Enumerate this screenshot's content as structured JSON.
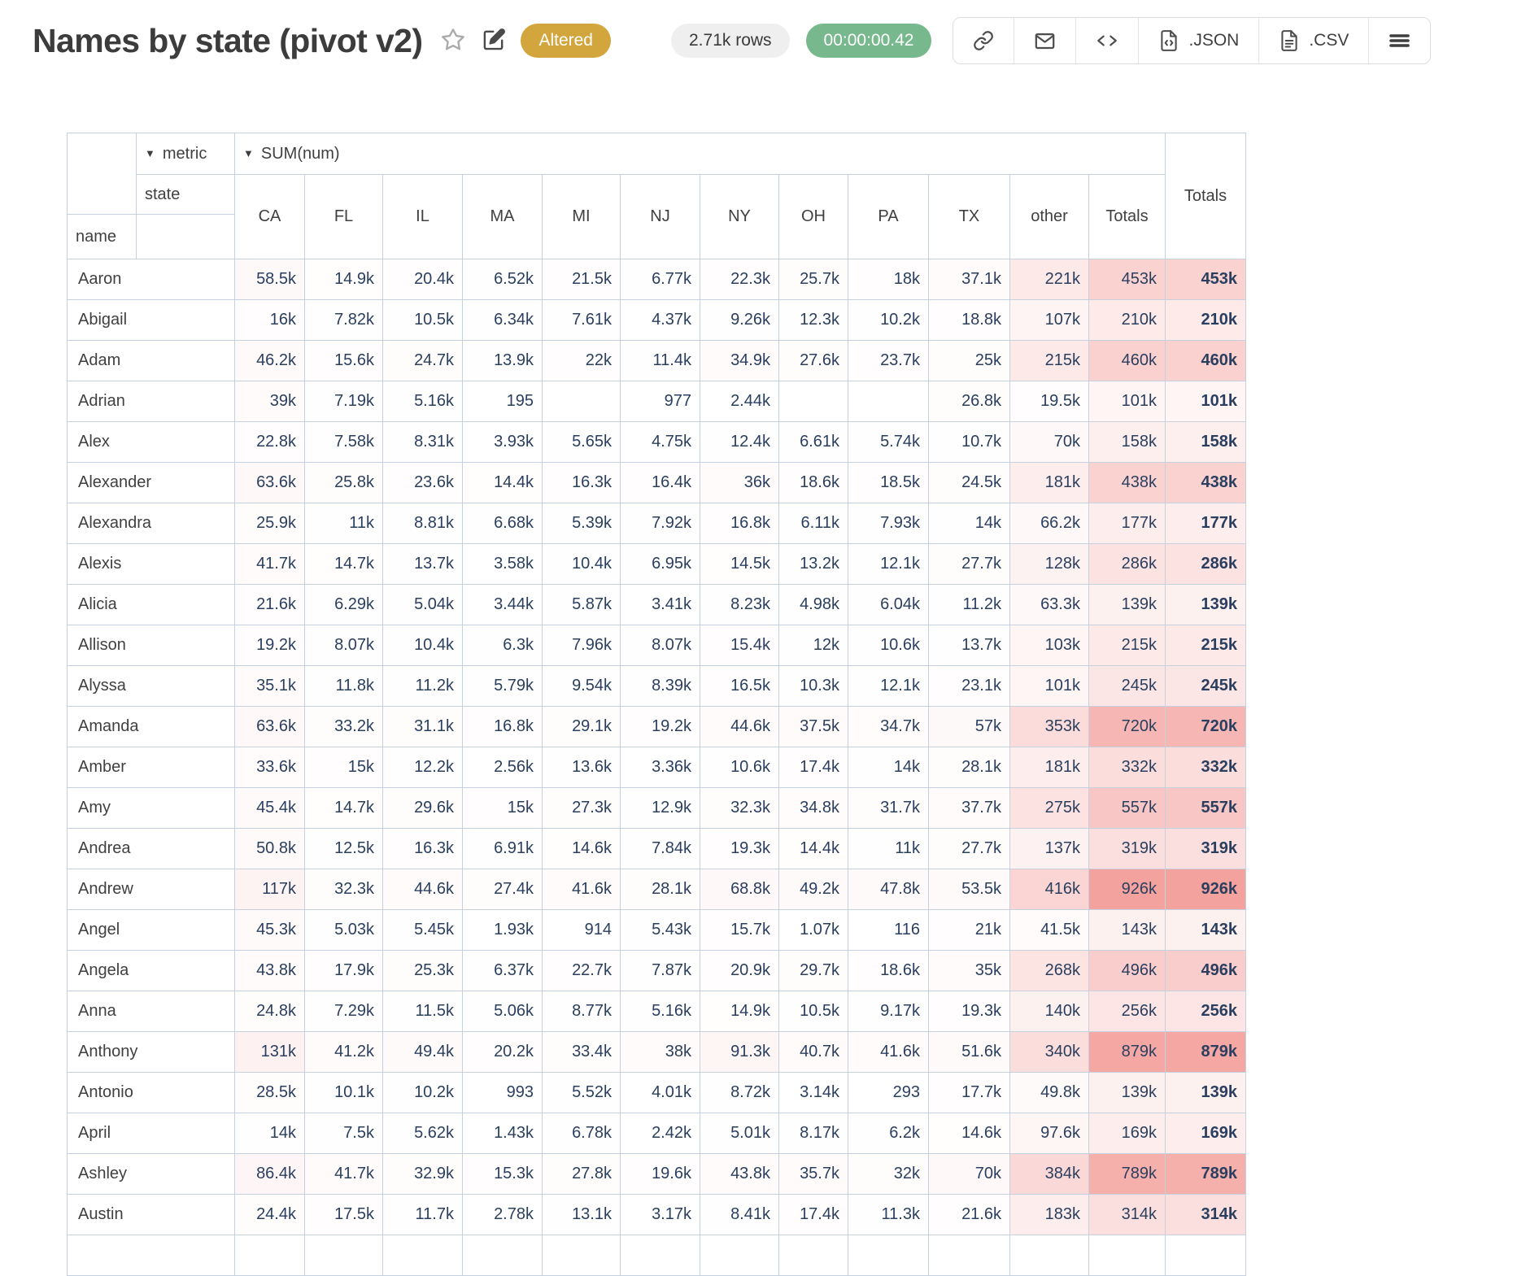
{
  "header": {
    "title": "Names by state (pivot v2)",
    "status_badge": "Altered",
    "rows_badge": "2.71k rows",
    "timer_badge": "00:00:00.42",
    "icons": [
      "star-icon",
      "edit-icon",
      "link-icon",
      "mail-icon",
      "code-icon",
      "file-json-icon",
      "file-csv-icon",
      "menu-icon"
    ],
    "buttons": [
      {
        "icon": "link-icon",
        "label": ""
      },
      {
        "icon": "mail-icon",
        "label": ""
      },
      {
        "icon": "code-icon",
        "label": ""
      },
      {
        "icon": "file-json-icon",
        "label": ".JSON"
      },
      {
        "icon": "file-csv-icon",
        "label": ".CSV"
      },
      {
        "icon": "menu-icon",
        "label": ""
      }
    ]
  },
  "pivot": {
    "metric_label": "metric",
    "metric_value": "SUM(num)",
    "col_axis_label": "state",
    "row_axis_label": "name",
    "totals_label": "Totals",
    "heat_max_value": 926000,
    "heat_color_max": "#f4a29e",
    "text_color": "#2a3f5f",
    "border_color": "#c6d1e0",
    "columns": [
      "CA",
      "FL",
      "IL",
      "MA",
      "MI",
      "NJ",
      "NY",
      "OH",
      "PA",
      "TX",
      "other",
      "Totals"
    ],
    "rows": [
      {
        "name": "Aaron",
        "values": [
          "58.5k",
          "14.9k",
          "20.4k",
          "6.52k",
          "21.5k",
          "6.77k",
          "22.3k",
          "25.7k",
          "18k",
          "37.1k",
          "221k",
          "453k"
        ],
        "total": "453k"
      },
      {
        "name": "Abigail",
        "values": [
          "16k",
          "7.82k",
          "10.5k",
          "6.34k",
          "7.61k",
          "4.37k",
          "9.26k",
          "12.3k",
          "10.2k",
          "18.8k",
          "107k",
          "210k"
        ],
        "total": "210k"
      },
      {
        "name": "Adam",
        "values": [
          "46.2k",
          "15.6k",
          "24.7k",
          "13.9k",
          "22k",
          "11.4k",
          "34.9k",
          "27.6k",
          "23.7k",
          "25k",
          "215k",
          "460k"
        ],
        "total": "460k"
      },
      {
        "name": "Adrian",
        "values": [
          "39k",
          "7.19k",
          "5.16k",
          "195",
          "",
          "977",
          "2.44k",
          "",
          "",
          "26.8k",
          "19.5k",
          "101k"
        ],
        "total": "101k"
      },
      {
        "name": "Alex",
        "values": [
          "22.8k",
          "7.58k",
          "8.31k",
          "3.93k",
          "5.65k",
          "4.75k",
          "12.4k",
          "6.61k",
          "5.74k",
          "10.7k",
          "70k",
          "158k"
        ],
        "total": "158k"
      },
      {
        "name": "Alexander",
        "values": [
          "63.6k",
          "25.8k",
          "23.6k",
          "14.4k",
          "16.3k",
          "16.4k",
          "36k",
          "18.6k",
          "18.5k",
          "24.5k",
          "181k",
          "438k"
        ],
        "total": "438k"
      },
      {
        "name": "Alexandra",
        "values": [
          "25.9k",
          "11k",
          "8.81k",
          "6.68k",
          "5.39k",
          "7.92k",
          "16.8k",
          "6.11k",
          "7.93k",
          "14k",
          "66.2k",
          "177k"
        ],
        "total": "177k"
      },
      {
        "name": "Alexis",
        "values": [
          "41.7k",
          "14.7k",
          "13.7k",
          "3.58k",
          "10.4k",
          "6.95k",
          "14.5k",
          "13.2k",
          "12.1k",
          "27.7k",
          "128k",
          "286k"
        ],
        "total": "286k"
      },
      {
        "name": "Alicia",
        "values": [
          "21.6k",
          "6.29k",
          "5.04k",
          "3.44k",
          "5.87k",
          "3.41k",
          "8.23k",
          "4.98k",
          "6.04k",
          "11.2k",
          "63.3k",
          "139k"
        ],
        "total": "139k"
      },
      {
        "name": "Allison",
        "values": [
          "19.2k",
          "8.07k",
          "10.4k",
          "6.3k",
          "7.96k",
          "8.07k",
          "15.4k",
          "12k",
          "10.6k",
          "13.7k",
          "103k",
          "215k"
        ],
        "total": "215k"
      },
      {
        "name": "Alyssa",
        "values": [
          "35.1k",
          "11.8k",
          "11.2k",
          "5.79k",
          "9.54k",
          "8.39k",
          "16.5k",
          "10.3k",
          "12.1k",
          "23.1k",
          "101k",
          "245k"
        ],
        "total": "245k"
      },
      {
        "name": "Amanda",
        "values": [
          "63.6k",
          "33.2k",
          "31.1k",
          "16.8k",
          "29.1k",
          "19.2k",
          "44.6k",
          "37.5k",
          "34.7k",
          "57k",
          "353k",
          "720k"
        ],
        "total": "720k"
      },
      {
        "name": "Amber",
        "values": [
          "33.6k",
          "15k",
          "12.2k",
          "2.56k",
          "13.6k",
          "3.36k",
          "10.6k",
          "17.4k",
          "14k",
          "28.1k",
          "181k",
          "332k"
        ],
        "total": "332k"
      },
      {
        "name": "Amy",
        "values": [
          "45.4k",
          "14.7k",
          "29.6k",
          "15k",
          "27.3k",
          "12.9k",
          "32.3k",
          "34.8k",
          "31.7k",
          "37.7k",
          "275k",
          "557k"
        ],
        "total": "557k"
      },
      {
        "name": "Andrea",
        "values": [
          "50.8k",
          "12.5k",
          "16.3k",
          "6.91k",
          "14.6k",
          "7.84k",
          "19.3k",
          "14.4k",
          "11k",
          "27.7k",
          "137k",
          "319k"
        ],
        "total": "319k"
      },
      {
        "name": "Andrew",
        "values": [
          "117k",
          "32.3k",
          "44.6k",
          "27.4k",
          "41.6k",
          "28.1k",
          "68.8k",
          "49.2k",
          "47.8k",
          "53.5k",
          "416k",
          "926k"
        ],
        "total": "926k"
      },
      {
        "name": "Angel",
        "values": [
          "45.3k",
          "5.03k",
          "5.45k",
          "1.93k",
          "914",
          "5.43k",
          "15.7k",
          "1.07k",
          "116",
          "21k",
          "41.5k",
          "143k"
        ],
        "total": "143k"
      },
      {
        "name": "Angela",
        "values": [
          "43.8k",
          "17.9k",
          "25.3k",
          "6.37k",
          "22.7k",
          "7.87k",
          "20.9k",
          "29.7k",
          "18.6k",
          "35k",
          "268k",
          "496k"
        ],
        "total": "496k"
      },
      {
        "name": "Anna",
        "values": [
          "24.8k",
          "7.29k",
          "11.5k",
          "5.06k",
          "8.77k",
          "5.16k",
          "14.9k",
          "10.5k",
          "9.17k",
          "19.3k",
          "140k",
          "256k"
        ],
        "total": "256k"
      },
      {
        "name": "Anthony",
        "values": [
          "131k",
          "41.2k",
          "49.4k",
          "20.2k",
          "33.4k",
          "38k",
          "91.3k",
          "40.7k",
          "41.6k",
          "51.6k",
          "340k",
          "879k"
        ],
        "total": "879k"
      },
      {
        "name": "Antonio",
        "values": [
          "28.5k",
          "10.1k",
          "10.2k",
          "993",
          "5.52k",
          "4.01k",
          "8.72k",
          "3.14k",
          "293",
          "17.7k",
          "49.8k",
          "139k"
        ],
        "total": "139k"
      },
      {
        "name": "April",
        "values": [
          "14k",
          "7.5k",
          "5.62k",
          "1.43k",
          "6.78k",
          "2.42k",
          "5.01k",
          "8.17k",
          "6.2k",
          "14.6k",
          "97.6k",
          "169k"
        ],
        "total": "169k"
      },
      {
        "name": "Ashley",
        "values": [
          "86.4k",
          "41.7k",
          "32.9k",
          "15.3k",
          "27.8k",
          "19.6k",
          "43.8k",
          "35.7k",
          "32k",
          "70k",
          "384k",
          "789k"
        ],
        "total": "789k"
      },
      {
        "name": "Austin",
        "values": [
          "24.4k",
          "17.5k",
          "11.7k",
          "2.78k",
          "13.1k",
          "3.17k",
          "8.41k",
          "17.4k",
          "11.3k",
          "21.6k",
          "183k",
          "314k"
        ],
        "total": "314k"
      }
    ]
  }
}
